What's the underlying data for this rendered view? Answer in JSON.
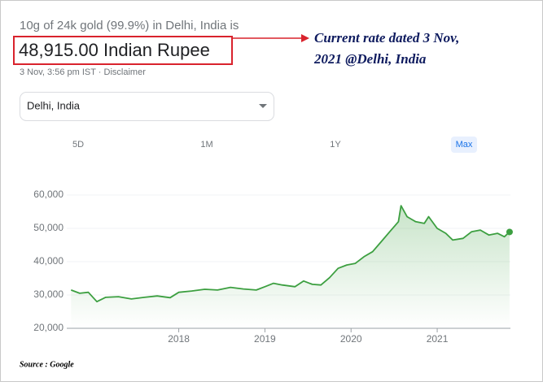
{
  "header": {
    "title": "10g of 24k gold (99.9%) in Delhi, India is",
    "price": "48,915.00 Indian Rupee",
    "timestamp": "3 Nov, 3:56 pm IST · Disclaimer",
    "annotation": [
      "Current rate dated 3 Nov,",
      "2021 @Delhi, India"
    ]
  },
  "location": "Delhi, India",
  "ranges": [
    "5D",
    "1M",
    "1Y",
    "Max"
  ],
  "selected_range": 3,
  "source": "Source : Google",
  "chart_data": {
    "type": "line",
    "color": "#3c9f40",
    "x": [
      2016.75,
      2016.85,
      2016.95,
      2017.05,
      2017.15,
      2017.3,
      2017.45,
      2017.6,
      2017.75,
      2017.9,
      2018.0,
      2018.15,
      2018.3,
      2018.45,
      2018.6,
      2018.75,
      2018.9,
      2019.0,
      2019.1,
      2019.2,
      2019.35,
      2019.45,
      2019.55,
      2019.65,
      2019.75,
      2019.85,
      2019.95,
      2020.05,
      2020.15,
      2020.25,
      2020.35,
      2020.45,
      2020.55,
      2020.58,
      2020.65,
      2020.75,
      2020.85,
      2020.9,
      2021.0,
      2021.1,
      2021.18,
      2021.3,
      2021.4,
      2021.5,
      2021.6,
      2021.7,
      2021.78,
      2021.84
    ],
    "values": [
      31500,
      30500,
      30800,
      28000,
      29300,
      29500,
      28800,
      29300,
      29700,
      29200,
      30800,
      31200,
      31700,
      31500,
      32300,
      31800,
      31500,
      32500,
      33500,
      33000,
      32500,
      34200,
      33200,
      33000,
      35200,
      38000,
      39000,
      39500,
      41500,
      43000,
      46000,
      49000,
      52000,
      56800,
      53500,
      52000,
      51500,
      53500,
      50000,
      48500,
      46500,
      47000,
      49000,
      49500,
      48000,
      48500,
      47500,
      48915
    ],
    "xlim": [
      2016.7,
      2021.85
    ],
    "ylim": [
      20000,
      60000
    ],
    "xticks": [
      2018,
      2019,
      2020,
      2021
    ],
    "yticks": [
      {
        "value": 20000,
        "label": "20,000"
      },
      {
        "value": 30000,
        "label": "30,000"
      },
      {
        "value": 40000,
        "label": "40,000"
      },
      {
        "value": 50000,
        "label": "50,000"
      },
      {
        "value": 60000,
        "label": "60,000"
      }
    ]
  }
}
